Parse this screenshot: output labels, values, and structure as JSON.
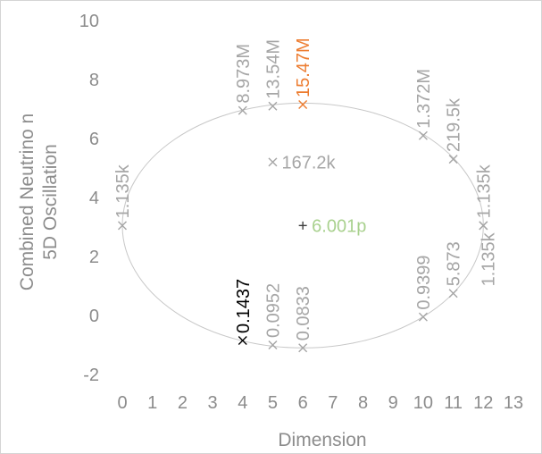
{
  "chart_data": {
    "type": "scatter",
    "title": "",
    "xlabel": "Dimension",
    "ylabel_lines": [
      "Combined Neutrino n",
      "5D Oscillation"
    ],
    "xlim": [
      0,
      13
    ],
    "ylim": [
      -2,
      10
    ],
    "x_ticks": [
      "0",
      "1",
      "2",
      "3",
      "4",
      "5",
      "6",
      "7",
      "8",
      "9",
      "10",
      "11",
      "12",
      "13"
    ],
    "y_ticks": [
      "10",
      "8",
      "6",
      "4",
      "2",
      "0",
      "-2"
    ],
    "grid": false,
    "legend": "none",
    "ellipse": {
      "cx": 6,
      "cy": 3.05,
      "rx": 6,
      "ry": 4.15,
      "color": "#c8c8c8"
    },
    "points": [
      {
        "x": 4,
        "y": 6.95,
        "label": "8.973M",
        "color": "#a6a6a6",
        "marker": "x",
        "orient": "vertical"
      },
      {
        "x": 5,
        "y": 7.1,
        "label": "13.54M",
        "color": "#a6a6a6",
        "marker": "x",
        "orient": "vertical"
      },
      {
        "x": 6,
        "y": 7.15,
        "label": "15.47M",
        "color": "#ed7d31",
        "marker": "x",
        "orient": "vertical"
      },
      {
        "x": 10,
        "y": 6.1,
        "label": "1.372M",
        "color": "#a6a6a6",
        "marker": "x",
        "orient": "vertical"
      },
      {
        "x": 11,
        "y": 5.3,
        "label": "219.5k",
        "color": "#a6a6a6",
        "marker": "x",
        "orient": "vertical"
      },
      {
        "x": 12,
        "y": 3.05,
        "label": "1.135k",
        "color": "#a6a6a6",
        "marker": "x",
        "orient": "vertical"
      },
      {
        "x": 5,
        "y": 5.2,
        "label": "167.2k",
        "color": "#a6a6a6",
        "marker": "x",
        "orient": "horizontal"
      },
      {
        "x": 0,
        "y": 3.05,
        "label": "1.135k",
        "color": "#a6a6a6",
        "marker": "x",
        "orient": "vertical"
      },
      {
        "x": 6,
        "y": 3.05,
        "label": "6.001p",
        "color": "#a9d18e",
        "marker": "+",
        "orient": "horizontal"
      },
      {
        "x": 4,
        "y": -0.85,
        "label": "0.1437",
        "color": "#000000",
        "marker": "x",
        "orient": "vertical"
      },
      {
        "x": 5,
        "y": -1.0,
        "label": "0.0952",
        "color": "#a6a6a6",
        "marker": "x",
        "orient": "vertical"
      },
      {
        "x": 6,
        "y": -1.1,
        "label": "0.0833",
        "color": "#a6a6a6",
        "marker": "x",
        "orient": "vertical"
      },
      {
        "x": 10,
        "y": -0.05,
        "label": "0.9399",
        "color": "#a6a6a6",
        "marker": "x",
        "orient": "vertical"
      },
      {
        "x": 11,
        "y": 0.75,
        "label": "5.873",
        "color": "#a6a6a6",
        "marker": "x",
        "orient": "vertical"
      },
      {
        "x": 12,
        "y": 3.05,
        "label": "1.135k",
        "color": "#a6a6a6",
        "marker": "x",
        "orient": "vertical-down"
      }
    ]
  }
}
